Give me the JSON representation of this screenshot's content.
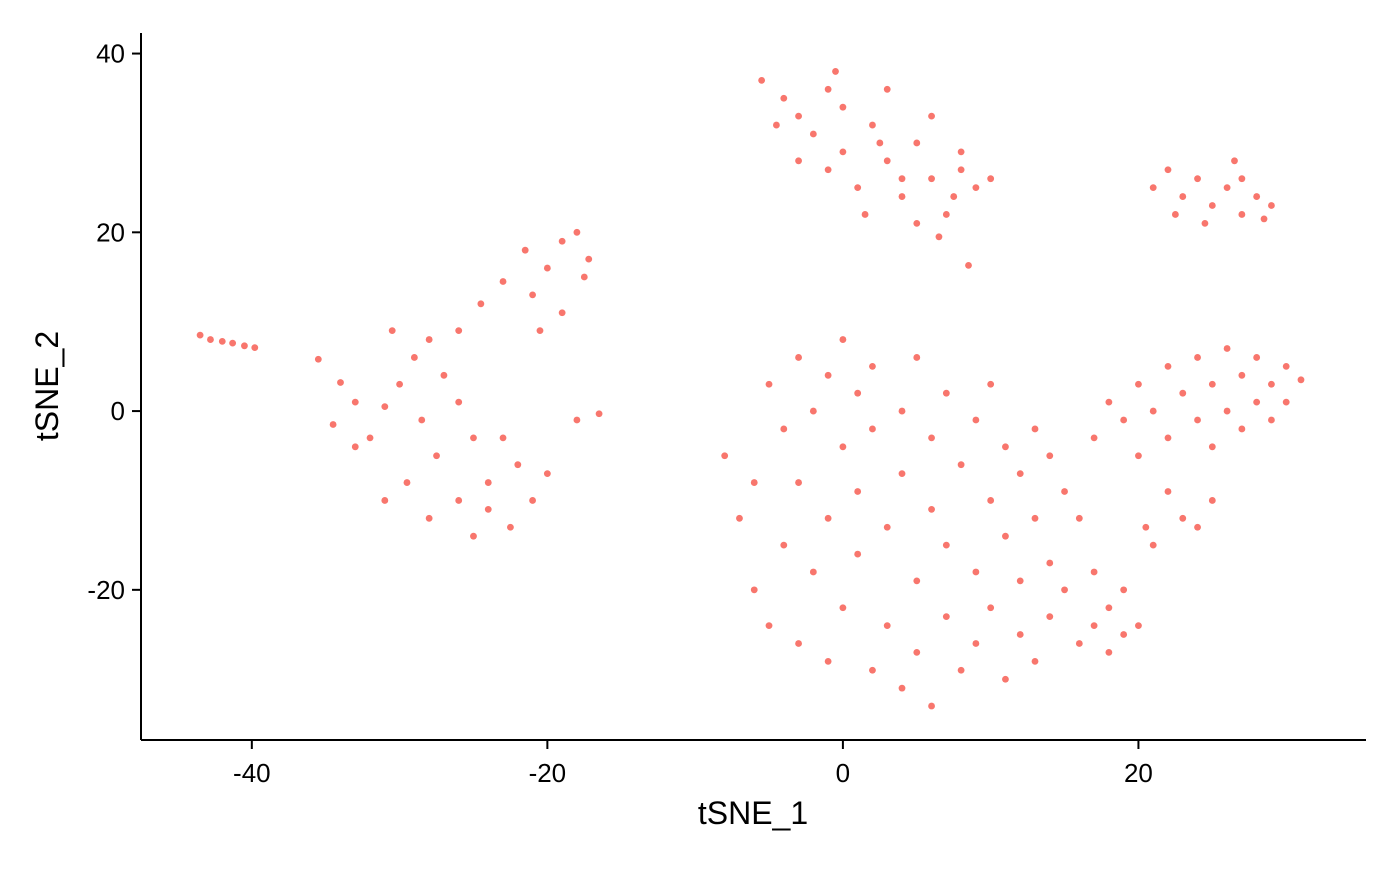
{
  "chart_data": {
    "type": "scatter",
    "x_label": "tSNE_1",
    "y_label": "tSNE_2",
    "xlim": [
      -47.5,
      35.4
    ],
    "ylim": [
      -36.8,
      42.3
    ],
    "xticks": [
      -40,
      -20,
      0,
      20
    ],
    "yticks": [
      -20,
      0,
      20,
      40
    ],
    "color": "#F8766D",
    "x": [
      -43.5,
      -42.8,
      -42,
      -41.3,
      -40.5,
      -39.8,
      -35.5,
      -34,
      -33,
      -34.5,
      -32,
      -31,
      -30,
      -29,
      -30.5,
      -28,
      -27,
      -26,
      -25,
      -27.5,
      -29.5,
      -31,
      -28,
      -26,
      -24,
      -22,
      -21,
      -22.5,
      -25,
      -20,
      -23,
      -26,
      -24.5,
      -23,
      -21,
      -20,
      -19,
      -21.5,
      -18,
      -17.5,
      -19,
      -17.2,
      -20.5,
      -28.5,
      -33,
      -24,
      -5.5,
      -4,
      -3,
      -1,
      0,
      -2,
      0,
      -1,
      1,
      2,
      3,
      4,
      5,
      6,
      7,
      8,
      9,
      6,
      3,
      -0.5,
      1.5,
      5,
      6.5,
      10,
      8,
      -3,
      -4.5,
      2.5,
      4,
      7.5,
      21,
      22,
      23,
      24,
      25,
      26,
      27,
      28,
      29,
      26.5,
      22.5,
      24.5,
      28.5,
      27,
      -8,
      -7,
      -6,
      -5,
      -5,
      -4,
      -4,
      -3,
      -3,
      -3,
      -2,
      -2,
      -1,
      -1,
      -1,
      0,
      0,
      0,
      1,
      1,
      1,
      2,
      2,
      2,
      3,
      3,
      4,
      4,
      4,
      5,
      5,
      5,
      6,
      6,
      6,
      7,
      7,
      7,
      8,
      8,
      9,
      9,
      9,
      10,
      10,
      10,
      11,
      11,
      11,
      12,
      12,
      12,
      13,
      13,
      13,
      14,
      14,
      14,
      15,
      15,
      16,
      16,
      17,
      17,
      18,
      18,
      19,
      19,
      20,
      -6,
      17,
      18,
      19,
      20,
      20,
      21,
      22,
      22,
      23,
      23,
      24,
      24,
      25,
      25,
      26,
      26,
      27,
      27,
      28,
      28,
      29,
      29,
      30,
      30,
      31,
      21,
      22,
      24,
      25,
      20.5,
      8.5,
      -18,
      -16.5
    ],
    "y": [
      8.5,
      8,
      7.8,
      7.6,
      7.3,
      7.1,
      5.8,
      3.2,
      1,
      -1.5,
      -3,
      0.5,
      3,
      6,
      9,
      8,
      4,
      1,
      -3,
      -5,
      -8,
      -10,
      -12,
      -10,
      -8,
      -6,
      -10,
      -13,
      -14,
      -7,
      -3,
      9,
      12,
      14.5,
      13,
      16,
      19,
      18,
      20,
      15,
      11,
      17,
      9,
      -1,
      -4,
      -11,
      37,
      35,
      33,
      36,
      34,
      31,
      29,
      27,
      25,
      32,
      28,
      24,
      30,
      26,
      22,
      27,
      25,
      33,
      36,
      38,
      22,
      21,
      19.5,
      26,
      29,
      28,
      32,
      30,
      26,
      24,
      25,
      27,
      24,
      26,
      23,
      25,
      22,
      24,
      23,
      28,
      22,
      21,
      21.5,
      26,
      -5,
      -12,
      -20,
      -24,
      3,
      -2,
      -15,
      6,
      -8,
      -26,
      0,
      -18,
      4,
      -12,
      -28,
      8,
      -4,
      -22,
      2,
      -9,
      -16,
      -29,
      5,
      -2,
      -13,
      -24,
      0,
      -7,
      -31,
      6,
      -19,
      -27,
      -3,
      -11,
      -33,
      2,
      -15,
      -23,
      -6,
      -29,
      -1,
      -18,
      -26,
      3,
      -10,
      -22,
      -4,
      -14,
      -30,
      -7,
      -19,
      -25,
      -2,
      -12,
      -28,
      -5,
      -17,
      -23,
      -9,
      -20,
      -12,
      -26,
      -18,
      -24,
      -22,
      -27,
      -20,
      -25,
      -24,
      -8,
      -3,
      1,
      -1,
      -5,
      3,
      0,
      -3,
      5,
      2,
      -12,
      -1,
      6,
      -4,
      3,
      0,
      7,
      -2,
      4,
      1,
      6,
      -1,
      3,
      5,
      1,
      3.5,
      -15,
      -9,
      -13,
      -10,
      -13,
      16.3,
      -1,
      -0.3
    ]
  }
}
